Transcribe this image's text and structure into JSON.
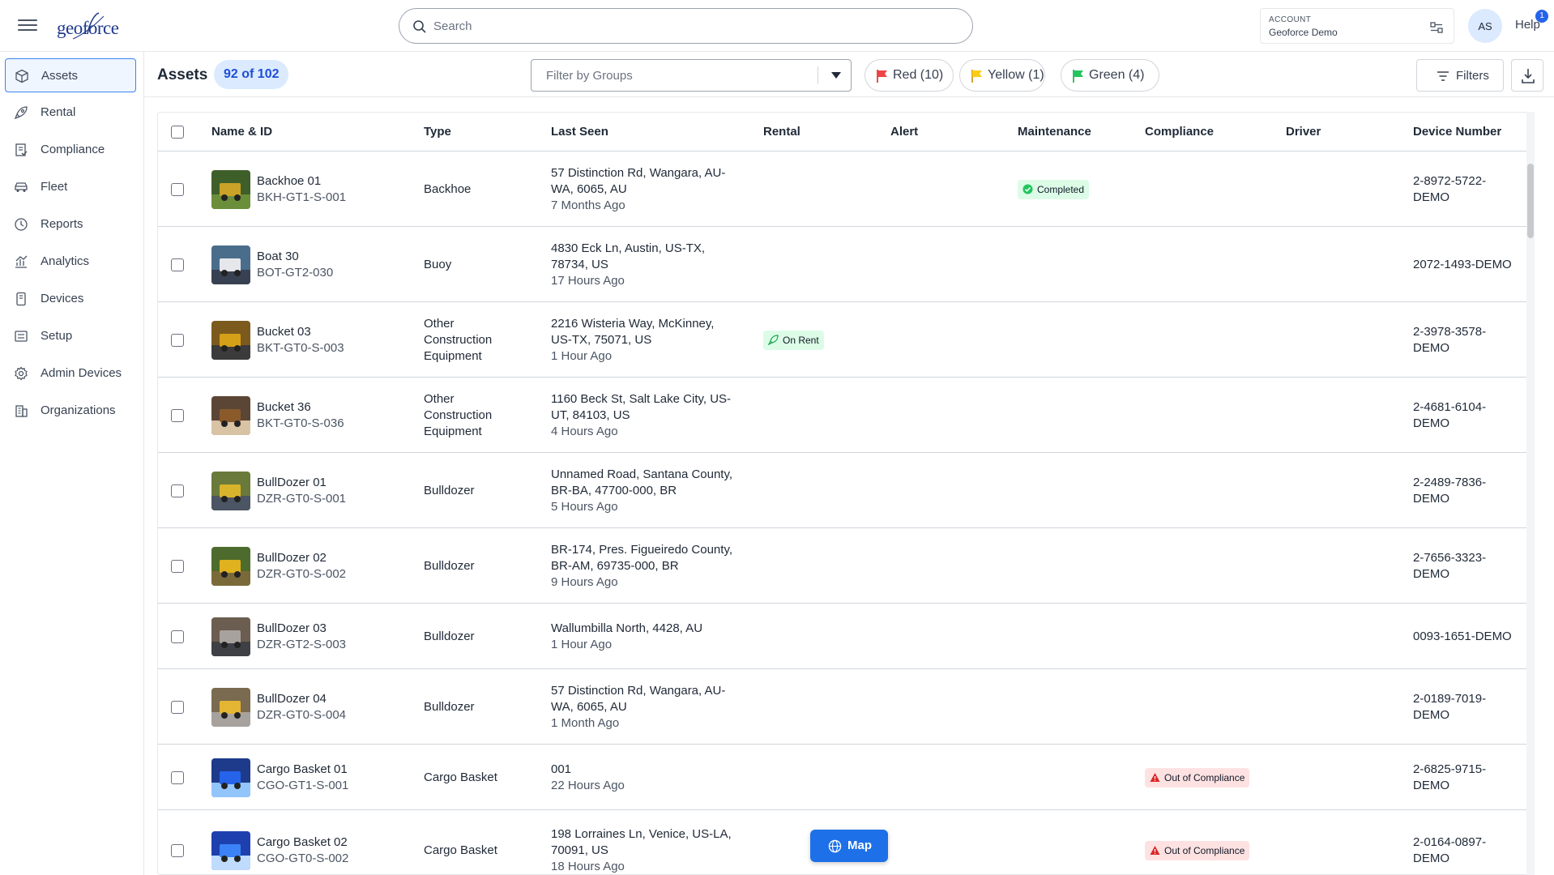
{
  "header": {
    "logo_text": "geoforce",
    "search_placeholder": "Search",
    "account_label": "ACCOUNT",
    "account_name": "Geoforce Demo",
    "avatar_initials": "AS",
    "help_label": "Help",
    "help_badge": "1"
  },
  "sidebar": {
    "items": [
      {
        "label": "Assets",
        "icon": "cube-icon",
        "active": true
      },
      {
        "label": "Rental",
        "icon": "rocket-icon"
      },
      {
        "label": "Compliance",
        "icon": "clipboard-check-icon"
      },
      {
        "label": "Fleet",
        "icon": "car-icon"
      },
      {
        "label": "Reports",
        "icon": "clock-report-icon"
      },
      {
        "label": "Analytics",
        "icon": "bar-chart-icon"
      },
      {
        "label": "Devices",
        "icon": "device-icon"
      },
      {
        "label": "Setup",
        "icon": "setup-icon"
      },
      {
        "label": "Admin Devices",
        "icon": "gear-icon"
      },
      {
        "label": "Organizations",
        "icon": "building-icon"
      }
    ]
  },
  "toolbar": {
    "title": "Assets",
    "count": "92 of 102",
    "group_filter_placeholder": "Filter by Groups",
    "flag_red": "Red (10)",
    "flag_yellow": "Yellow (1)",
    "flag_green": "Green (4)",
    "filters_label": "Filters",
    "colors": {
      "red": "#ef4444",
      "yellow": "#facc15",
      "green": "#22c55e",
      "accent": "#1d70e8"
    }
  },
  "table": {
    "columns": {
      "name": "Name & ID",
      "type": "Type",
      "last_seen": "Last Seen",
      "rental": "Rental",
      "alert": "Alert",
      "maintenance": "Maintenance",
      "compliance": "Compliance",
      "driver": "Driver",
      "device": "Device Number"
    },
    "rows": [
      {
        "name": "Backhoe 01",
        "id": "BKH-GT1-S-001",
        "type": [
          "Backhoe"
        ],
        "address": [
          "57 Distinction Rd, Wangara, AU-",
          "WA, 6065, AU"
        ],
        "ago": "7 Months Ago",
        "rental": "",
        "maintenance": "Completed",
        "compliance": "",
        "device": [
          "2-8972-5722-",
          "DEMO"
        ]
      },
      {
        "name": "Boat 30",
        "id": "BOT-GT2-030",
        "type": [
          "Buoy"
        ],
        "address": [
          "4830 Eck Ln, Austin, US-TX,",
          "78734, US"
        ],
        "ago": "17 Hours Ago",
        "rental": "",
        "maintenance": "",
        "compliance": "",
        "device": [
          "2072-1493-DEMO"
        ]
      },
      {
        "name": "Bucket 03",
        "id": "BKT-GT0-S-003",
        "type": [
          "Other",
          "Construction",
          "Equipment"
        ],
        "address": [
          "2216 Wisteria Way, McKinney,",
          "US-TX, 75071, US"
        ],
        "ago": "1 Hour Ago",
        "rental": "On Rent",
        "maintenance": "",
        "compliance": "",
        "device": [
          "2-3978-3578-",
          "DEMO"
        ]
      },
      {
        "name": "Bucket 36",
        "id": "BKT-GT0-S-036",
        "type": [
          "Other",
          "Construction",
          "Equipment"
        ],
        "address": [
          "1160 Beck St, Salt Lake City, US-",
          "UT, 84103, US"
        ],
        "ago": "4 Hours Ago",
        "rental": "",
        "maintenance": "",
        "compliance": "",
        "device": [
          "2-4681-6104-",
          "DEMO"
        ]
      },
      {
        "name": "BullDozer 01",
        "id": "DZR-GT0-S-001",
        "type": [
          "Bulldozer"
        ],
        "address": [
          "Unnamed Road, Santana County,",
          "BR-BA, 47700-000, BR"
        ],
        "ago": "5 Hours Ago",
        "rental": "",
        "maintenance": "",
        "compliance": "",
        "device": [
          "2-2489-7836-",
          "DEMO"
        ]
      },
      {
        "name": "BullDozer 02",
        "id": "DZR-GT0-S-002",
        "type": [
          "Bulldozer"
        ],
        "address": [
          "BR-174, Pres. Figueiredo County,",
          "BR-AM, 69735-000, BR"
        ],
        "ago": "9 Hours Ago",
        "rental": "",
        "maintenance": "",
        "compliance": "",
        "device": [
          "2-7656-3323-",
          "DEMO"
        ]
      },
      {
        "name": "BullDozer 03",
        "id": "DZR-GT2-S-003",
        "type": [
          "Bulldozer"
        ],
        "address": [
          "Wallumbilla North, 4428, AU"
        ],
        "ago": "1 Hour Ago",
        "rental": "",
        "maintenance": "",
        "compliance": "",
        "device": [
          "0093-1651-DEMO"
        ]
      },
      {
        "name": "BullDozer 04",
        "id": "DZR-GT0-S-004",
        "type": [
          "Bulldozer"
        ],
        "address": [
          "57 Distinction Rd, Wangara, AU-",
          "WA, 6065, AU"
        ],
        "ago": "1 Month Ago",
        "rental": "",
        "maintenance": "",
        "compliance": "",
        "device": [
          "2-0189-7019-",
          "DEMO"
        ]
      },
      {
        "name": "Cargo Basket 01",
        "id": "CGO-GT1-S-001",
        "type": [
          "Cargo Basket"
        ],
        "address": [
          "001"
        ],
        "ago": "22 Hours Ago",
        "rental": "",
        "maintenance": "",
        "compliance": "Out of Compliance",
        "device": [
          "2-6825-9715-",
          "DEMO"
        ]
      },
      {
        "name": "Cargo Basket 02",
        "id": "CGO-GT0-S-002",
        "type": [
          "Cargo Basket"
        ],
        "address": [
          "198 Lorraines Ln, Venice, US-LA,",
          "70091, US"
        ],
        "ago": "18 Hours Ago",
        "rental": "",
        "maintenance": "",
        "compliance": "Out of Compliance",
        "device": [
          "2-0164-0897-",
          "DEMO"
        ]
      }
    ]
  },
  "map_button_label": "Map"
}
